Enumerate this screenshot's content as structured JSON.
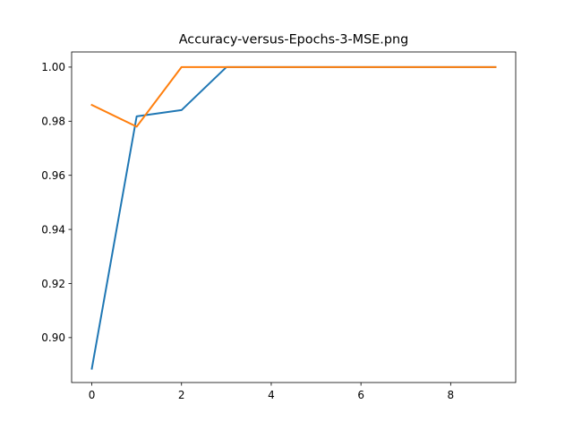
{
  "chart_data": {
    "type": "line",
    "title": "Accuracy-versus-Epochs-3-MSE.png",
    "xlabel": "",
    "ylabel": "",
    "xlim": [
      -0.45,
      9.45
    ],
    "ylim": [
      0.8834,
      1.0056
    ],
    "grid": false,
    "x": [
      0,
      1,
      2,
      3,
      4,
      5,
      6,
      7,
      8,
      9
    ],
    "x_ticks": [
      0,
      2,
      4,
      6,
      8
    ],
    "y_ticks": [
      0.9,
      0.92,
      0.94,
      0.96,
      0.98,
      1.0
    ],
    "x_tick_labels": [
      "0",
      "2",
      "4",
      "6",
      "8"
    ],
    "y_tick_labels": [
      "0.90",
      "0.92",
      "0.94",
      "0.96",
      "0.98",
      "1.00"
    ],
    "series": [
      {
        "color": "#1f77b4",
        "values": [
          0.8885,
          0.9818,
          0.9841,
          1.0,
          1.0,
          1.0,
          1.0,
          1.0,
          1.0,
          1.0
        ]
      },
      {
        "color": "#ff7f0e",
        "values": [
          0.986,
          0.978,
          1.0,
          1.0,
          1.0,
          1.0,
          1.0,
          1.0,
          1.0,
          1.0
        ]
      }
    ]
  }
}
